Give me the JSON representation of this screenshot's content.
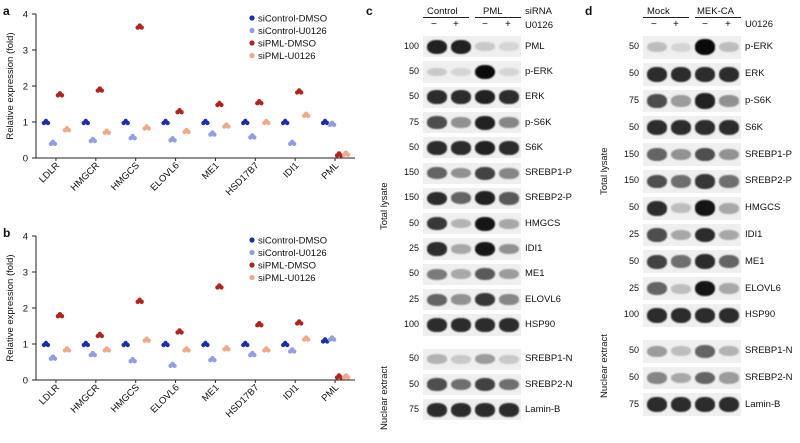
{
  "panel_a": {
    "letter": "a",
    "ylabel": "Relative expression (fold)",
    "yticks": [
      "0",
      "1",
      "2",
      "3",
      "4"
    ],
    "legend": [
      "siControl-DMSO",
      "siControl-U0126",
      "siPML-DMSO",
      "siPML-U0126"
    ]
  },
  "panel_b": {
    "letter": "b",
    "ylabel": "Relative expression (fold)",
    "yticks": [
      "0",
      "1",
      "2",
      "3",
      "4"
    ],
    "legend": [
      "siControl-DMSO",
      "siControl-U0126",
      "siPML-DMSO",
      "siPML-U0126"
    ]
  },
  "colors": {
    "siControl-DMSO": "#1b2fa8",
    "siControl-U0126": "#8f9ee6",
    "siPML-DMSO": "#b3231c",
    "siPML-U0126": "#f2a98a"
  },
  "chart_data": [
    {
      "type": "scatter",
      "categories": [
        "LDLR",
        "HMGCR",
        "HMGCS",
        "ELOVL6",
        "ME1",
        "HSD17B7",
        "IDI1",
        "PML"
      ],
      "ylabel": "Relative expression (fold)",
      "ylim": [
        0,
        4
      ],
      "series": [
        {
          "name": "siControl-DMSO",
          "values": [
            1.0,
            1.0,
            1.0,
            1.0,
            1.0,
            1.0,
            1.0,
            1.0
          ]
        },
        {
          "name": "siControl-U0126",
          "values": [
            0.42,
            0.5,
            0.58,
            0.52,
            0.68,
            0.6,
            0.42,
            0.95
          ]
        },
        {
          "name": "siPML-DMSO",
          "values": [
            1.77,
            1.9,
            3.65,
            1.3,
            1.5,
            1.55,
            1.85,
            0.1
          ]
        },
        {
          "name": "siPML-U0126",
          "values": [
            0.8,
            0.73,
            0.85,
            0.75,
            0.9,
            1.0,
            1.2,
            0.12
          ]
        }
      ]
    },
    {
      "type": "scatter",
      "categories": [
        "LDLR",
        "HMGCR",
        "HMGCS",
        "ELOVL6",
        "ME1",
        "HSD17B7",
        "IDI1",
        "PML"
      ],
      "ylabel": "Relative expression (fold)",
      "ylim": [
        0,
        4
      ],
      "series": [
        {
          "name": "siControl-DMSO",
          "values": [
            1.0,
            1.0,
            1.0,
            1.0,
            1.0,
            1.0,
            1.0,
            1.1
          ]
        },
        {
          "name": "siControl-U0126",
          "values": [
            0.62,
            0.72,
            0.55,
            0.42,
            0.58,
            0.72,
            0.82,
            1.15
          ]
        },
        {
          "name": "siPML-DMSO",
          "values": [
            1.8,
            1.25,
            2.2,
            1.35,
            2.6,
            1.55,
            1.6,
            0.1
          ]
        },
        {
          "name": "siPML-U0126",
          "values": [
            0.85,
            0.85,
            1.12,
            0.85,
            0.88,
            0.85,
            1.15,
            0.1
          ]
        }
      ]
    }
  ],
  "panel_c": {
    "letter": "c",
    "groups": [
      "Control",
      "PML"
    ],
    "row_labels": [
      "siRNA",
      "U0126"
    ],
    "signs": [
      "−",
      "+",
      "−",
      "+"
    ],
    "side_labels": [
      "Total lysate",
      "Nuclear extract"
    ],
    "blots": [
      {
        "label": "PML",
        "mw": "100",
        "intens": [
          0.9,
          0.9,
          0.15,
          0.1
        ]
      },
      {
        "label": "p-ERK",
        "mw": "50",
        "intens": [
          0.15,
          0.1,
          1.0,
          0.1
        ]
      },
      {
        "label": "ERK",
        "mw": "50",
        "intens": [
          0.85,
          0.85,
          0.9,
          0.85
        ]
      },
      {
        "label": "p-S6K",
        "mw": "75",
        "intens": [
          0.7,
          0.4,
          0.9,
          0.45
        ]
      },
      {
        "label": "S6K",
        "mw": "50",
        "intens": [
          0.85,
          0.85,
          0.9,
          0.85
        ]
      },
      {
        "label": "SREBP1-P",
        "mw": "150",
        "intens": [
          0.6,
          0.4,
          0.75,
          0.45
        ]
      },
      {
        "label": "SREBP2-P",
        "mw": "150",
        "intens": [
          0.85,
          0.6,
          0.9,
          0.65
        ]
      },
      {
        "label": "HMGCS",
        "mw": "50",
        "intens": [
          0.8,
          0.25,
          0.95,
          0.3
        ]
      },
      {
        "label": "IDI1",
        "mw": "25",
        "intens": [
          0.85,
          0.3,
          0.95,
          0.4
        ]
      },
      {
        "label": "ME1",
        "mw": "50",
        "intens": [
          0.5,
          0.3,
          0.65,
          0.35
        ]
      },
      {
        "label": "ELOVL6",
        "mw": "25",
        "intens": [
          0.6,
          0.4,
          0.8,
          0.45
        ]
      },
      {
        "label": "HSP90",
        "mw": "100",
        "intens": [
          0.85,
          0.85,
          0.85,
          0.85
        ]
      },
      {
        "label": "SREBP1-N",
        "mw": "50",
        "intens": [
          0.25,
          0.15,
          0.35,
          0.15
        ]
      },
      {
        "label": "SREBP2-N",
        "mw": "50",
        "intens": [
          0.7,
          0.55,
          0.75,
          0.55
        ]
      },
      {
        "label": "Lamin-B",
        "mw": "75",
        "intens": [
          0.85,
          0.85,
          0.85,
          0.85
        ]
      }
    ]
  },
  "panel_d": {
    "letter": "d",
    "groups": [
      "Mock",
      "MEK-CA"
    ],
    "row_label": "U0126",
    "signs": [
      "−",
      "+",
      "−",
      "+"
    ],
    "side_labels": [
      "Total lysate",
      "Nuclear extract"
    ],
    "blots": [
      {
        "label": "p-ERK",
        "mw": "50",
        "intens": [
          0.2,
          0.1,
          1.0,
          0.2
        ]
      },
      {
        "label": "ERK",
        "mw": "50",
        "intens": [
          0.85,
          0.85,
          0.85,
          0.85
        ]
      },
      {
        "label": "p-S6K",
        "mw": "75",
        "intens": [
          0.7,
          0.35,
          0.9,
          0.4
        ]
      },
      {
        "label": "S6K",
        "mw": "50",
        "intens": [
          0.85,
          0.85,
          0.85,
          0.85
        ]
      },
      {
        "label": "SREBP1-P",
        "mw": "150",
        "intens": [
          0.6,
          0.4,
          0.7,
          0.4
        ]
      },
      {
        "label": "SREBP2-P",
        "mw": "150",
        "intens": [
          0.7,
          0.55,
          0.8,
          0.55
        ]
      },
      {
        "label": "HMGCS",
        "mw": "50",
        "intens": [
          0.85,
          0.2,
          0.95,
          0.3
        ]
      },
      {
        "label": "IDI1",
        "mw": "25",
        "intens": [
          0.7,
          0.3,
          0.85,
          0.3
        ]
      },
      {
        "label": "ME1",
        "mw": "50",
        "intens": [
          0.75,
          0.55,
          0.85,
          0.6
        ]
      },
      {
        "label": "ELOVL6",
        "mw": "25",
        "intens": [
          0.6,
          0.2,
          0.95,
          0.3
        ]
      },
      {
        "label": "HSP90",
        "mw": "100",
        "intens": [
          0.85,
          0.85,
          0.85,
          0.85
        ]
      },
      {
        "label": "SREBP1-N",
        "mw": "50",
        "intens": [
          0.35,
          0.2,
          0.6,
          0.25
        ]
      },
      {
        "label": "SREBP2-N",
        "mw": "50",
        "intens": [
          0.45,
          0.3,
          0.6,
          0.35
        ]
      },
      {
        "label": "Lamin-B",
        "mw": "75",
        "intens": [
          0.85,
          0.85,
          0.85,
          0.85
        ]
      }
    ]
  }
}
